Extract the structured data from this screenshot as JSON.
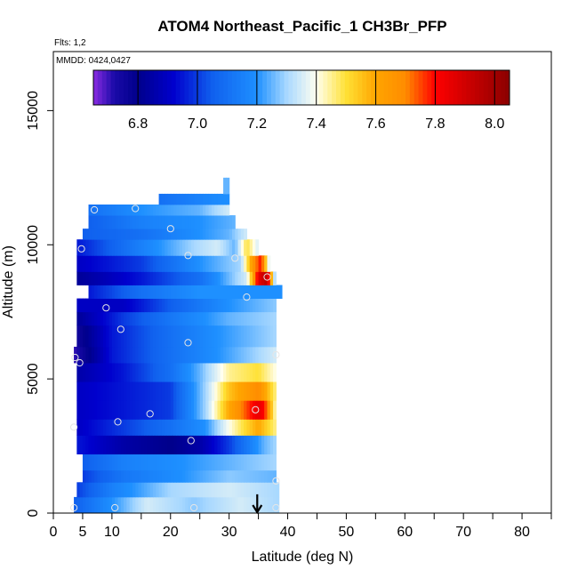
{
  "chart_data": {
    "type": "heatmap",
    "title": "ATOM4 Northeast_Pacific_1 CH3Br_PFP",
    "annotations": {
      "flights": "Flts: 1,2",
      "dates": "MMDD: 0424,0427"
    },
    "xlabel": "Latitude (deg N)",
    "ylabel": "Altitude (m)",
    "xlim": [
      0,
      85
    ],
    "ylim": [
      0,
      17200
    ],
    "x_ticks": [
      0,
      5,
      10,
      20,
      30,
      40,
      50,
      60,
      70,
      80
    ],
    "x_tick_labels": [
      "0",
      "5",
      "10",
      "20",
      "30",
      "40",
      "50",
      "60",
      "70",
      "80"
    ],
    "x_minor_ticks": [
      15,
      25,
      35,
      45,
      55,
      65,
      75,
      85
    ],
    "y_ticks": [
      0,
      5000,
      10000,
      15000
    ],
    "y_tick_labels": [
      "0",
      "5000",
      "10000",
      "15000"
    ],
    "colorbar": {
      "range": [
        6.65,
        8.05
      ],
      "ticks": [
        6.8,
        7.0,
        7.2,
        7.4,
        7.6,
        7.8,
        8.0
      ],
      "tick_labels": [
        "6.8",
        "7.0",
        "7.2",
        "7.4",
        "7.6",
        "7.8",
        "8.0"
      ],
      "stops": [
        [
          6.65,
          "#8a2be2"
        ],
        [
          6.72,
          "#1a0aa8"
        ],
        [
          6.8,
          "#00008b"
        ],
        [
          6.92,
          "#0000cd"
        ],
        [
          7.05,
          "#1060ee"
        ],
        [
          7.2,
          "#1e90ff"
        ],
        [
          7.3,
          "#a8d8ff"
        ],
        [
          7.4,
          "#fffff0"
        ],
        [
          7.5,
          "#ffe135"
        ],
        [
          7.6,
          "#ffa500"
        ],
        [
          7.7,
          "#ff8c00"
        ],
        [
          7.8,
          "#ff0000"
        ],
        [
          8.05,
          "#8b0000"
        ]
      ]
    },
    "bands": [
      {
        "alt": [
          0,
          600
        ],
        "lat": [
          3.5,
          38.5
        ],
        "profile": [
          [
            3.5,
            7.05
          ],
          [
            10,
            7.2
          ],
          [
            16,
            7.35
          ],
          [
            24,
            7.28
          ],
          [
            32,
            7.35
          ],
          [
            38.5,
            7.3
          ]
        ]
      },
      {
        "alt": [
          600,
          1150
        ],
        "lat": [
          4,
          38.5
        ],
        "profile": [
          [
            4,
            7.0
          ],
          [
            10,
            7.15
          ],
          [
            20,
            7.3
          ],
          [
            30,
            7.35
          ],
          [
            38.5,
            7.3
          ]
        ]
      },
      {
        "alt": [
          1150,
          1600
        ],
        "lat": [
          5,
          38
        ],
        "profile": [
          [
            5,
            7.0
          ],
          [
            12,
            7.12
          ],
          [
            22,
            7.2
          ],
          [
            30,
            7.28
          ],
          [
            38,
            7.25
          ]
        ]
      },
      {
        "alt": [
          1600,
          2200
        ],
        "lat": [
          5,
          38
        ],
        "profile": [
          [
            5,
            7.05
          ],
          [
            12,
            7.15
          ],
          [
            22,
            7.2
          ],
          [
            30,
            7.25
          ],
          [
            38,
            7.3
          ]
        ]
      },
      {
        "alt": [
          2200,
          2900
        ],
        "lat": [
          4,
          38
        ],
        "profile": [
          [
            4,
            6.95
          ],
          [
            12,
            6.85
          ],
          [
            20,
            6.8
          ],
          [
            25,
            6.85
          ],
          [
            30,
            7.0
          ],
          [
            36,
            7.25
          ],
          [
            38,
            7.3
          ]
        ]
      },
      {
        "alt": [
          2900,
          3500
        ],
        "lat": [
          4,
          38
        ],
        "profile": [
          [
            4,
            6.9
          ],
          [
            12,
            7.0
          ],
          [
            20,
            7.1
          ],
          [
            26,
            7.2
          ],
          [
            30,
            7.4
          ],
          [
            35,
            7.6
          ],
          [
            38,
            7.45
          ]
        ]
      },
      {
        "alt": [
          3500,
          4200
        ],
        "lat": [
          4,
          38
        ],
        "profile": [
          [
            4,
            6.9
          ],
          [
            12,
            6.95
          ],
          [
            20,
            7.0
          ],
          [
            26,
            7.3
          ],
          [
            30,
            7.6
          ],
          [
            35,
            7.85
          ],
          [
            36,
            7.8
          ],
          [
            38,
            7.4
          ]
        ]
      },
      {
        "alt": [
          4200,
          4900
        ],
        "lat": [
          4,
          38
        ],
        "profile": [
          [
            4,
            6.9
          ],
          [
            12,
            6.95
          ],
          [
            20,
            7.0
          ],
          [
            26,
            7.3
          ],
          [
            30,
            7.55
          ],
          [
            35,
            7.7
          ],
          [
            38,
            7.45
          ]
        ]
      },
      {
        "alt": [
          4900,
          5600
        ],
        "lat": [
          4,
          38
        ],
        "profile": [
          [
            4,
            6.85
          ],
          [
            12,
            6.95
          ],
          [
            20,
            7.1
          ],
          [
            25,
            7.25
          ],
          [
            30,
            7.45
          ],
          [
            35,
            7.5
          ],
          [
            38,
            7.4
          ]
        ]
      },
      {
        "alt": [
          5600,
          6200
        ],
        "lat": [
          3.5,
          38
        ],
        "profile": [
          [
            3.5,
            6.7
          ],
          [
            10,
            6.95
          ],
          [
            20,
            7.1
          ],
          [
            28,
            7.2
          ],
          [
            35,
            7.3
          ],
          [
            38,
            7.35
          ]
        ]
      },
      {
        "alt": [
          6200,
          7000
        ],
        "lat": [
          4,
          38
        ],
        "profile": [
          [
            4,
            6.75
          ],
          [
            10,
            6.95
          ],
          [
            20,
            7.1
          ],
          [
            28,
            7.2
          ],
          [
            38,
            7.3
          ]
        ]
      },
      {
        "alt": [
          7000,
          7500
        ],
        "lat": [
          4,
          38
        ],
        "profile": [
          [
            4,
            6.82
          ],
          [
            12,
            7.0
          ],
          [
            22,
            7.15
          ],
          [
            30,
            7.25
          ],
          [
            38,
            7.3
          ]
        ]
      },
      {
        "alt": [
          7500,
          8000
        ],
        "lat": [
          4,
          38
        ],
        "profile": [
          [
            4,
            6.9
          ],
          [
            12,
            6.9
          ],
          [
            20,
            7.05
          ],
          [
            30,
            7.2
          ],
          [
            38,
            7.28
          ]
        ]
      },
      {
        "alt": [
          8000,
          8500
        ],
        "lat": [
          6,
          39
        ],
        "profile": [
          [
            6,
            6.95
          ],
          [
            15,
            7.1
          ],
          [
            25,
            7.2
          ],
          [
            35,
            7.2
          ],
          [
            39,
            7.2
          ]
        ]
      },
      {
        "alt": [
          8500,
          9000
        ],
        "lat": [
          4,
          38
        ],
        "profile": [
          [
            4,
            6.82
          ],
          [
            15,
            6.95
          ],
          [
            25,
            7.1
          ],
          [
            33,
            7.35
          ],
          [
            35,
            7.85
          ],
          [
            36.5,
            7.95
          ],
          [
            38,
            7.2
          ]
        ]
      },
      {
        "alt": [
          9000,
          9600
        ],
        "lat": [
          4,
          37
        ],
        "profile": [
          [
            4,
            6.9
          ],
          [
            15,
            7.0
          ],
          [
            25,
            7.2
          ],
          [
            32,
            7.3
          ],
          [
            34,
            7.65
          ],
          [
            35.5,
            7.8
          ],
          [
            37,
            7.3
          ]
        ]
      },
      {
        "alt": [
          9600,
          10200
        ],
        "lat": [
          4,
          35
        ],
        "profile": [
          [
            4,
            6.95
          ],
          [
            15,
            7.15
          ],
          [
            24,
            7.3
          ],
          [
            28,
            7.35
          ],
          [
            31,
            7.25
          ],
          [
            33,
            7.5
          ],
          [
            35,
            7.35
          ]
        ]
      },
      {
        "alt": [
          10200,
          10600
        ],
        "lat": [
          5,
          33
        ],
        "profile": [
          [
            5,
            7.05
          ],
          [
            15,
            7.1
          ],
          [
            25,
            7.2
          ],
          [
            30,
            7.25
          ],
          [
            33,
            7.35
          ]
        ]
      },
      {
        "alt": [
          10600,
          11100
        ],
        "lat": [
          6,
          31
        ],
        "profile": [
          [
            6,
            7.05
          ],
          [
            15,
            7.15
          ],
          [
            25,
            7.2
          ],
          [
            31,
            7.25
          ]
        ]
      },
      {
        "alt": [
          11100,
          11500
        ],
        "lat": [
          6,
          30
        ],
        "profile": [
          [
            6,
            7.1
          ],
          [
            15,
            7.2
          ],
          [
            25,
            7.25
          ],
          [
            30,
            7.35
          ]
        ]
      },
      {
        "alt": [
          11500,
          11900
        ],
        "lat": [
          18,
          30
        ],
        "profile": [
          [
            18,
            7.1
          ],
          [
            24,
            7.15
          ],
          [
            30,
            7.2
          ]
        ]
      },
      {
        "alt": [
          11900,
          12500
        ],
        "lat": [
          29,
          30
        ],
        "profile": [
          [
            29,
            7.25
          ],
          [
            30,
            7.25
          ]
        ]
      }
    ],
    "samples": [
      {
        "x": 3.5,
        "y": 200
      },
      {
        "x": 10.5,
        "y": 200
      },
      {
        "x": 24,
        "y": 200
      },
      {
        "x": 38,
        "y": 200
      },
      {
        "x": 38,
        "y": 1200
      },
      {
        "x": 3.5,
        "y": 3200
      },
      {
        "x": 11,
        "y": 3400
      },
      {
        "x": 16.5,
        "y": 3700
      },
      {
        "x": 23.5,
        "y": 2700
      },
      {
        "x": 34.5,
        "y": 3850
      },
      {
        "x": 3.7,
        "y": 5800
      },
      {
        "x": 4.5,
        "y": 5600
      },
      {
        "x": 23,
        "y": 6350
      },
      {
        "x": 38,
        "y": 5900
      },
      {
        "x": 11.5,
        "y": 6850
      },
      {
        "x": 9,
        "y": 7650
      },
      {
        "x": 33,
        "y": 8050
      },
      {
        "x": 36.5,
        "y": 8800
      },
      {
        "x": 4.8,
        "y": 9850
      },
      {
        "x": 23,
        "y": 9600
      },
      {
        "x": 31,
        "y": 9500
      },
      {
        "x": 20,
        "y": 10600
      },
      {
        "x": 7,
        "y": 11300
      },
      {
        "x": 14,
        "y": 11350
      }
    ],
    "arrow": {
      "lat": 34.8,
      "alt_top": 700,
      "alt_bottom": 0
    }
  }
}
